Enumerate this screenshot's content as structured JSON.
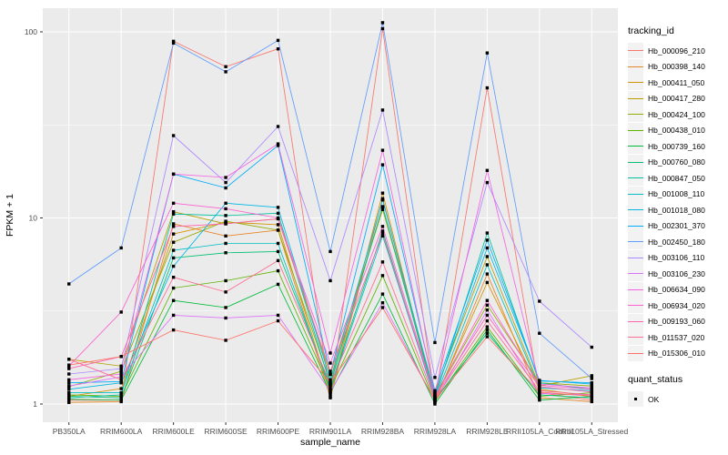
{
  "chart_data": {
    "type": "line",
    "title": "",
    "xlabel": "sample_name",
    "ylabel": "FPKM + 1",
    "y_scale": "log10",
    "ylim": [
      0.8,
      135
    ],
    "y_ticks": [
      1,
      10,
      100
    ],
    "y_minor_ticks": [
      3.162,
      31.623
    ],
    "grid": "on",
    "legend_position": "right",
    "panel_background": "#EBEBEB",
    "grid_color": "#FFFFFF",
    "tick_label_color": "#4D4D4D",
    "point_color": "#000000",
    "categories": [
      "PB350LA",
      "RRIM600LA",
      "RRIM600LE",
      "RRIM600SE",
      "RRIM600PE",
      "RRIM901LA",
      "RRIM928BA",
      "RRIM928LA",
      "RRIM928LE",
      "RRII105LA_Control",
      "RRII105LA_Stressed"
    ],
    "series": [
      {
        "name": "Hb_000096_210",
        "color": "#F8766D",
        "values": [
          1.05,
          1.05,
          89,
          65,
          81,
          1.1,
          104,
          1.05,
          50,
          1.15,
          1.05
        ]
      },
      {
        "name": "Hb_000398_140",
        "color": "#E88526",
        "values": [
          1.02,
          1.03,
          9.3,
          8.0,
          8.6,
          1.08,
          12.7,
          1.02,
          5.0,
          1.08,
          1.03
        ]
      },
      {
        "name": "Hb_000411_050",
        "color": "#D39200",
        "values": [
          1.1,
          1.21,
          8.2,
          9.5,
          9.2,
          1.13,
          13.6,
          1.05,
          4.5,
          1.2,
          1.1
        ]
      },
      {
        "name": "Hb_000417_280",
        "color": "#B79F00",
        "values": [
          1.74,
          1.6,
          10.8,
          9.3,
          9.9,
          1.44,
          11.1,
          1.15,
          6.2,
          1.25,
          1.42
        ]
      },
      {
        "name": "Hb_000424_100",
        "color": "#93AA00",
        "values": [
          1.24,
          1.5,
          7.4,
          9.6,
          8.6,
          1.3,
          11.5,
          1.1,
          3.4,
          1.3,
          1.25
        ]
      },
      {
        "name": "Hb_000438_010",
        "color": "#5EB300",
        "values": [
          1.12,
          1.1,
          4.2,
          4.6,
          5.2,
          1.2,
          4.9,
          1.03,
          2.6,
          1.1,
          1.15
        ]
      },
      {
        "name": "Hb_000739_160",
        "color": "#00BA38",
        "values": [
          1.06,
          1.05,
          3.6,
          3.3,
          4.4,
          1.15,
          3.9,
          1.0,
          2.5,
          1.05,
          1.1
        ]
      },
      {
        "name": "Hb_000760_080",
        "color": "#00BF74",
        "values": [
          1.1,
          1.08,
          6.1,
          6.5,
          6.6,
          1.24,
          8.5,
          1.06,
          2.4,
          1.12,
          1.08
        ]
      },
      {
        "name": "Hb_000847_050",
        "color": "#00C19F",
        "values": [
          1.08,
          1.12,
          10.5,
          10.3,
          10.6,
          1.27,
          11.5,
          1.08,
          8.3,
          1.3,
          1.2
        ]
      },
      {
        "name": "Hb_001008_110",
        "color": "#00BFC4",
        "values": [
          1.15,
          1.15,
          6.7,
          7.3,
          7.3,
          1.2,
          8.0,
          1.07,
          5.6,
          1.22,
          1.18
        ]
      },
      {
        "name": "Hb_001018_080",
        "color": "#00B9E3",
        "values": [
          1.2,
          1.3,
          5.5,
          12.0,
          11.4,
          1.35,
          12.5,
          1.12,
          6.9,
          1.34,
          1.28
        ]
      },
      {
        "name": "Hb_002301_370",
        "color": "#00ADFA",
        "values": [
          1.3,
          1.32,
          17.2,
          14.5,
          24.5,
          1.45,
          19.3,
          1.18,
          7.6,
          1.33,
          1.3
        ]
      },
      {
        "name": "Hb_002450_180",
        "color": "#619CFF",
        "values": [
          4.42,
          6.9,
          87,
          61,
          90,
          6.6,
          112,
          2.14,
          77,
          2.4,
          1.37
        ]
      },
      {
        "name": "Hb_003106_110",
        "color": "#AE87FF",
        "values": [
          1.45,
          1.55,
          27.7,
          15.5,
          31,
          4.6,
          38,
          1.39,
          15.5,
          3.57,
          2.02
        ]
      },
      {
        "name": "Hb_003106_230",
        "color": "#DB72FB",
        "values": [
          1.25,
          1.4,
          3.0,
          2.9,
          3.0,
          1.17,
          3.5,
          1.04,
          3.2,
          1.14,
          1.12
        ]
      },
      {
        "name": "Hb_006634_090",
        "color": "#F564E3",
        "values": [
          1.35,
          1.45,
          17.2,
          16.5,
          25,
          1.88,
          23.1,
          1.14,
          18,
          1.28,
          1.22
        ]
      },
      {
        "name": "Hb_006934_020",
        "color": "#FD61D1",
        "values": [
          1.6,
          3.12,
          12.0,
          11.2,
          10.0,
          1.66,
          9.0,
          1.1,
          3.6,
          1.26,
          1.2
        ]
      },
      {
        "name": "Hb_009193_060",
        "color": "#FF64B0",
        "values": [
          1.55,
          1.8,
          9.0,
          9.3,
          9.9,
          1.5,
          8.2,
          1.09,
          3.0,
          1.24,
          1.16
        ]
      },
      {
        "name": "Hb_011537_020",
        "color": "#FF6B94",
        "values": [
          1.74,
          1.35,
          4.8,
          4.0,
          5.9,
          1.28,
          5.8,
          1.06,
          2.8,
          1.18,
          1.12
        ]
      },
      {
        "name": "Hb_015306_010",
        "color": "#FF7066",
        "values": [
          1.62,
          1.8,
          2.5,
          2.2,
          2.8,
          1.3,
          3.3,
          1.05,
          2.3,
          1.16,
          1.1
        ]
      }
    ]
  },
  "legend": {
    "tracking_title": "tracking_id",
    "quant_title": "quant_status",
    "quant_items": [
      {
        "label": "OK"
      }
    ]
  }
}
